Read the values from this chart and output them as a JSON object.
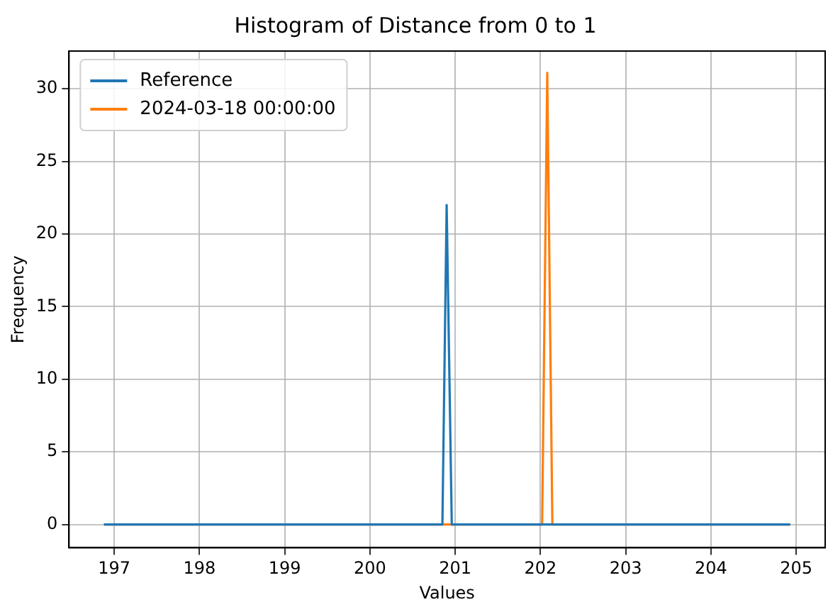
{
  "chart_data": {
    "type": "line",
    "title": "Histogram of Distance from 0 to 1",
    "xlabel": "Values",
    "ylabel": "Frequency",
    "series": [
      {
        "name": "Reference",
        "color": "#1f77b4",
        "x": [
          196.88,
          200.85,
          200.9,
          200.96,
          204.93
        ],
        "values": [
          0,
          0,
          22,
          0,
          0
        ]
      },
      {
        "name": "2024-03-18 00:00:00",
        "color": "#ff7f0e",
        "x": [
          196.88,
          202.02,
          202.08,
          202.14,
          204.93
        ],
        "values": [
          0,
          0,
          31.1,
          0,
          0
        ]
      }
    ],
    "xlim": [
      196.47,
      205.34
    ],
    "xticks": [
      197,
      198,
      199,
      200,
      201,
      202,
      203,
      204,
      205
    ],
    "ylim": [
      -1.6,
      32.6
    ],
    "yticks": [
      0,
      5,
      10,
      15,
      20,
      25,
      30
    ],
    "grid": true,
    "legend": "top left",
    "marker": "none",
    "line_style": "solid"
  }
}
